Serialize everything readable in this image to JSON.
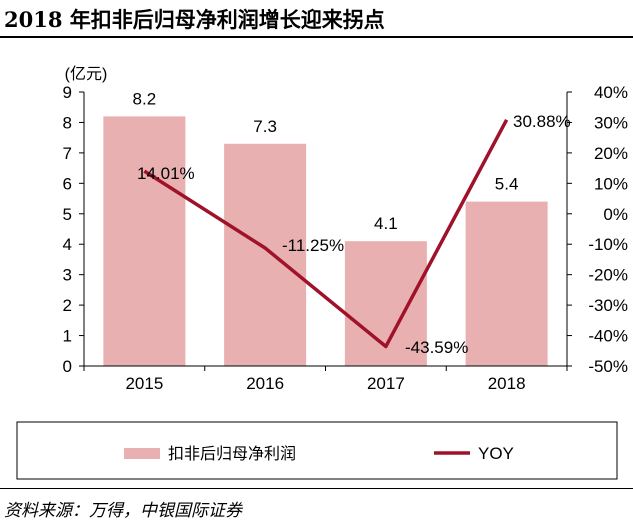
{
  "title": "2018 年扣非后归母净利润增长迎来拐点",
  "source": "资料来源：万得，中银国际证券",
  "chart_data": {
    "type": "bar",
    "title": "2018 年扣非后归母净利润增长迎来拐点",
    "categories": [
      "2015",
      "2016",
      "2017",
      "2018"
    ],
    "series": [
      {
        "name": "扣非后归母净利润",
        "type": "bar",
        "axis": "left",
        "values": [
          8.2,
          7.3,
          4.1,
          5.4
        ],
        "labels": [
          "8.2",
          "7.3",
          "4.1",
          "5.4"
        ],
        "color": "#e8b0b0"
      },
      {
        "name": "YOY",
        "type": "line",
        "axis": "right",
        "values": [
          14.01,
          -11.25,
          -43.59,
          30.88
        ],
        "labels": [
          "14.01%",
          "-11.25%",
          "-43.59%",
          "30.88%"
        ],
        "color": "#a0122a"
      }
    ],
    "left_axis": {
      "unit_label": "(亿元)",
      "ylim": [
        0,
        9
      ],
      "ticks": [
        "0",
        "1",
        "2",
        "3",
        "4",
        "5",
        "6",
        "7",
        "8",
        "9"
      ]
    },
    "right_axis": {
      "ylim": [
        -50,
        40
      ],
      "ticks": [
        "-50%",
        "-40%",
        "-30%",
        "-20%",
        "-10%",
        "0%",
        "10%",
        "20%",
        "30%",
        "40%"
      ]
    },
    "grid": false,
    "legend_position": "bottom"
  }
}
